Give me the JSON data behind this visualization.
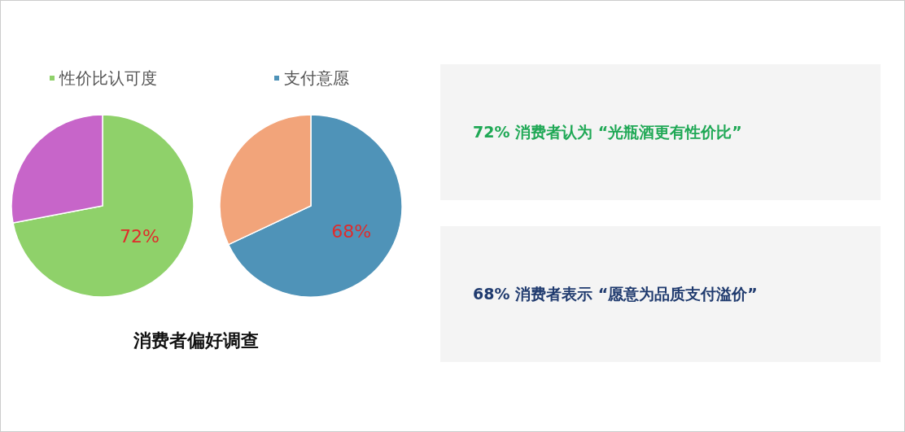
{
  "chart_data": [
    {
      "type": "pie",
      "title": "消费者偏好调查",
      "categories": [
        "性价比认可度",
        null
      ],
      "values": [
        72,
        28
      ],
      "colors": [
        "#8fd16a",
        "#c765c9"
      ],
      "value_labels": [
        "72%",
        null
      ],
      "legend": "top"
    },
    {
      "type": "pie",
      "categories": [
        "支付意愿",
        null
      ],
      "values": [
        68,
        32
      ],
      "colors": [
        "#4f93b8",
        "#f2a47a"
      ],
      "value_labels": [
        "68%",
        null
      ],
      "legend": "top"
    },
    {
      "type": "other",
      "annotations": [
        "72% 消费者认为 “光瓶酒更有性价比”",
        "68% 消费者表示 “愿意为品质支付溢价”"
      ]
    }
  ]
}
